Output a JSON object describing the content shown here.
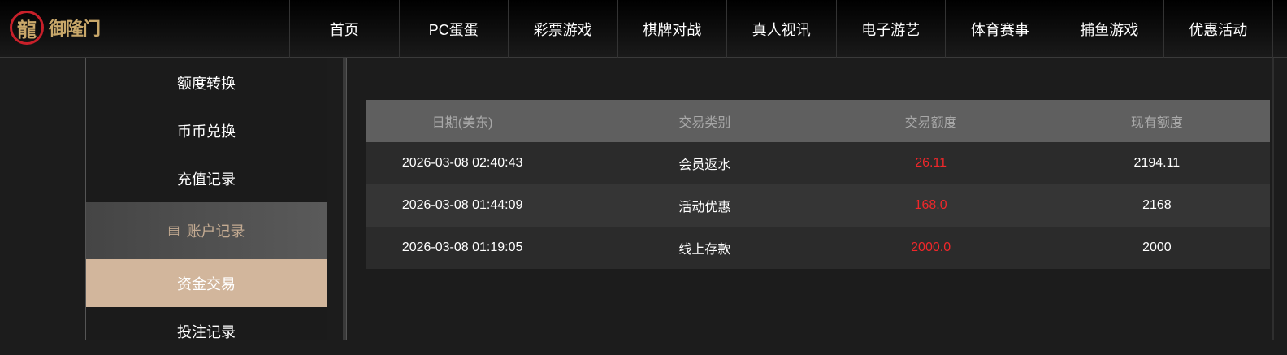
{
  "header": {
    "logo_text": "御隆门",
    "nav": [
      "首页",
      "PC蛋蛋",
      "彩票游戏",
      "棋牌对战",
      "真人视讯",
      "电子游艺",
      "体育赛事",
      "捕鱼游戏",
      "优惠活动"
    ]
  },
  "sidebar": {
    "items": [
      "额度转换",
      "币币兑换",
      "充值记录"
    ],
    "group_label": "账户记录",
    "group_icon": "account-record-icon",
    "active": "资金交易",
    "next": "投注记录"
  },
  "colors": {
    "accent": "#d2b69c",
    "amount": "#f0272a"
  },
  "table": {
    "headers": [
      "日期(美东)",
      "交易类别",
      "交易额度",
      "现有额度"
    ],
    "rows": [
      [
        "2026-03-08 02:40:43",
        "会员返水",
        "26.11",
        "2194.11"
      ],
      [
        "2026-03-08 01:44:09",
        "活动优惠",
        "168.0",
        "2168"
      ],
      [
        "2026-03-08 01:19:05",
        "线上存款",
        "2000.0",
        "2000"
      ]
    ]
  }
}
